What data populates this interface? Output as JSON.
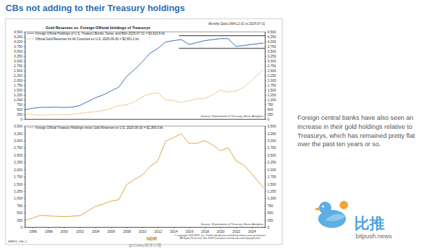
{
  "title": "CBs not adding to their Treasury holdings",
  "commentary": "Foreign central banks have also seen an increase in their gold holdings relative to Treasurys, which has remained pretty flat over the past ten years or so.",
  "footer": {
    "code": "BMF25_768_C",
    "brand": "NDR",
    "copyright": [
      "© Copyright 2025 NDR, Inc. Further distribution prohibited without prior permission.",
      "All Rights Reserved. See NDR Disclaimer at www.ndr.com/copyright.html"
    ]
  },
  "watermark": "@Odaily星球日报",
  "logo": {
    "name": "比推",
    "site": "bitpush.news"
  },
  "chart_data": [
    {
      "type": "line",
      "title": "Gold Reserves vs. Foreign Official Holdings of Treasurys",
      "subtitle": "Monthly Data 1994-12-31 to 2025-07-31",
      "source": "Source: Department of Treasury, Haver Analytics",
      "x": [
        1995,
        1996,
        1997,
        1998,
        1999,
        2000,
        2001,
        2002,
        2003,
        2004,
        2005,
        2006,
        2007,
        2008,
        2009,
        2010,
        2011,
        2012,
        2013,
        2014,
        2015,
        2016,
        2017,
        2018,
        2019,
        2020,
        2021,
        2022,
        2023,
        2024,
        2025.5
      ],
      "xlim": [
        1995,
        2025.7
      ],
      "ylim": [
        0,
        4500
      ],
      "yticks": [
        0,
        250,
        500,
        750,
        {
          "value": 1000,
          "label": "1,000"
        },
        {
          "value": 1250,
          "label": "1,250"
        },
        {
          "value": 1500,
          "label": "1,500"
        },
        {
          "value": 1750,
          "label": "1,750"
        },
        {
          "value": 2000,
          "label": "2,000"
        },
        {
          "value": 2250,
          "label": "2,250"
        },
        {
          "value": 2500,
          "label": "2,500"
        },
        {
          "value": 2750,
          "label": "2,750"
        },
        {
          "value": 3000,
          "label": "3,000"
        },
        {
          "value": 3250,
          "label": "3,250"
        },
        {
          "value": 3500,
          "label": "3,500"
        },
        {
          "value": 3750,
          "label": "3,750"
        },
        {
          "value": 4000,
          "label": "4,000"
        },
        {
          "value": 4250,
          "label": "4,250"
        },
        {
          "value": 4500,
          "label": "4,500"
        }
      ],
      "tick_labels": "y",
      "legend": "upper left",
      "series": [
        {
          "name": "Foreign Official Holdings of U.S. Treasury Bonds, Notes, and Bills 2025-07-31 = $3,923.6 bil.",
          "color": "#2f6fb5",
          "line_style": "solid",
          "values": [
            490,
            560,
            610,
            610,
            620,
            600,
            620,
            700,
            900,
            1100,
            1250,
            1450,
            1650,
            2200,
            2550,
            2950,
            3400,
            3650,
            3980,
            4050,
            4100,
            3850,
            3950,
            4050,
            4100,
            4150,
            4150,
            3750,
            3800,
            3850,
            3923.6
          ]
        },
        {
          "name": "Official Gold Reserves for All Countries ex U.S. 2025-06-30 = $2,551.1 bil.",
          "color": "#e3a13b",
          "line_style": "dashed",
          "values": [
            260,
            240,
            200,
            220,
            240,
            230,
            240,
            300,
            350,
            380,
            450,
            550,
            700,
            730,
            900,
            1150,
            1300,
            1350,
            1000,
            950,
            870,
            950,
            1050,
            1050,
            1250,
            1500,
            1400,
            1450,
            1650,
            2000,
            2551.1
          ]
        }
      ],
      "reference_lines": [
        {
          "y": 4300,
          "x": [
            2014.7,
            2025.7
          ]
        },
        {
          "y": 3650,
          "x": [
            2014.7,
            2025.7
          ]
        }
      ]
    },
    {
      "type": "line",
      "source": "Source: Department of Treasury, Haver Analytics",
      "x": [
        1995,
        1996,
        1997,
        1998,
        1999,
        2000,
        2001,
        2002,
        2003,
        2004,
        2005,
        2006,
        2007,
        2008,
        2009,
        2010,
        2011,
        2012,
        2013,
        2014,
        2015,
        2016,
        2017,
        2018,
        2019,
        2020,
        2021,
        2022,
        2023,
        2024,
        2025.5
      ],
      "xlim": [
        1995,
        2025.7
      ],
      "xticks": [
        1996,
        1998,
        2000,
        2002,
        2004,
        2006,
        2008,
        2010,
        2012,
        2014,
        2016,
        2018,
        2020,
        2022,
        2024
      ],
      "ylim": [
        0,
        3500
      ],
      "yticks": [
        0,
        250,
        500,
        750,
        {
          "value": 1000,
          "label": "1,000"
        },
        {
          "value": 1250,
          "label": "1,250"
        },
        {
          "value": 1500,
          "label": "1,500"
        },
        {
          "value": 1750,
          "label": "1,750"
        },
        {
          "value": 2000,
          "label": "2,000"
        },
        {
          "value": 2250,
          "label": "2,250"
        },
        {
          "value": 2500,
          "label": "2,500"
        },
        {
          "value": 2750,
          "label": "2,750"
        },
        {
          "value": 3000,
          "label": "3,000"
        },
        {
          "value": 3250,
          "label": "3,250"
        },
        {
          "value": 3500,
          "label": "3,500"
        }
      ],
      "legend": "upper left",
      "series": [
        {
          "name": "Foreign Official Treasury Holdings minus Gold Reserves ex U.S. 2025-06-30 = $1,369.3 bil.",
          "color": "#e3a13b",
          "line_style": "solid",
          "values": [
            230,
            320,
            410,
            390,
            380,
            370,
            380,
            400,
            550,
            720,
            800,
            900,
            950,
            1470,
            1650,
            1800,
            2100,
            2300,
            2980,
            3100,
            3230,
            2900,
            2900,
            3000,
            2850,
            2650,
            2750,
            2300,
            2150,
            1850,
            1369.3
          ]
        }
      ]
    }
  ]
}
